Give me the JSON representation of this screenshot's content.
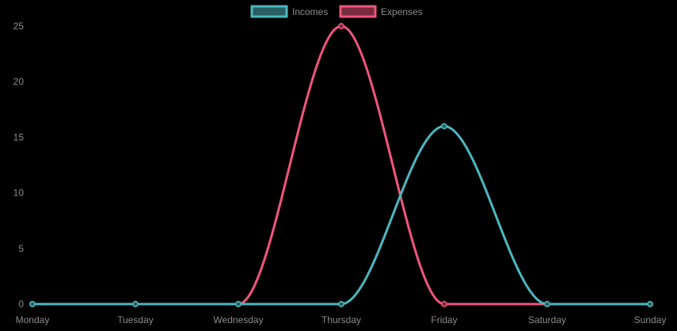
{
  "chart_data": {
    "type": "line",
    "categories": [
      "Monday",
      "Tuesday",
      "Wednesday",
      "Thursday",
      "Friday",
      "Saturday",
      "Sunday"
    ],
    "series": [
      {
        "name": "Incomes",
        "values": [
          0,
          0,
          0,
          0,
          16,
          0,
          0
        ],
        "color": "#4bb8bf",
        "fill": "#2a5f63"
      },
      {
        "name": "Expenses",
        "values": [
          0,
          0,
          0,
          25,
          0,
          0,
          0
        ],
        "color": "#f0557b",
        "fill": "#7a2b3f"
      }
    ],
    "yticks": [
      0,
      5,
      10,
      15,
      20,
      25
    ],
    "ylim": [
      0,
      25
    ],
    "grid": false,
    "legend_position": "top-center",
    "smooth": true
  }
}
